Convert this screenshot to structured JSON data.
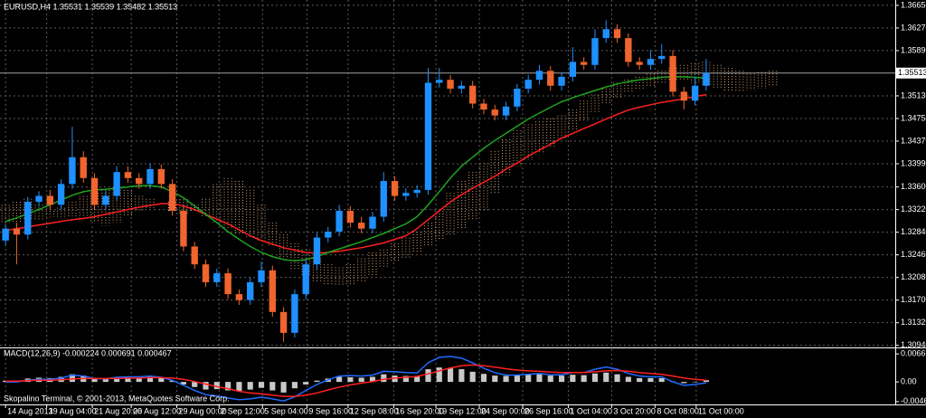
{
  "chart_data": {
    "type": "candlestick",
    "title": "EURUSD,H4  1.35531 1.35539 1.35482 1.35513",
    "footer": "Skopalino Terminal, © 2001-2013, MetaQuotes Software Corp.",
    "open": [
      1.327,
      1.329,
      1.328,
      1.3335,
      1.3345,
      1.333,
      1.3365,
      1.341,
      1.3375,
      1.333,
      1.3345,
      1.3385,
      1.3375,
      1.3365,
      1.339,
      1.3365,
      1.332,
      1.326,
      1.323,
      1.32,
      1.3215,
      1.318,
      1.317,
      1.32,
      1.322,
      1.315,
      1.3115,
      1.318,
      1.323,
      1.3275,
      1.3285,
      1.332,
      1.33,
      1.329,
      1.331,
      1.337,
      1.3345,
      1.335,
      1.3355,
      1.3535,
      1.354,
      1.3525,
      1.353,
      1.35,
      1.349,
      1.348,
      1.3495,
      1.3525,
      1.354,
      1.3555,
      1.353,
      1.3545,
      1.357,
      1.3565,
      1.361,
      1.3625,
      1.361,
      1.357,
      1.3565,
      1.3575,
      1.358,
      1.352,
      1.3505,
      1.353
    ],
    "high": [
      1.3298,
      1.33,
      1.3343,
      1.3353,
      1.3355,
      1.3373,
      1.3461,
      1.342,
      1.3383,
      1.3353,
      1.3395,
      1.3395,
      1.3383,
      1.34,
      1.3398,
      1.3373,
      1.3328,
      1.3268,
      1.3238,
      1.3223,
      1.3223,
      1.3188,
      1.3208,
      1.3235,
      1.3228,
      1.3158,
      1.3188,
      1.3238,
      1.3283,
      1.3293,
      1.333,
      1.3328,
      1.331,
      1.3318,
      1.3385,
      1.3378,
      1.3358,
      1.3363,
      1.356,
      1.356,
      1.3548,
      1.3538,
      1.3538,
      1.3508,
      1.3498,
      1.3503,
      1.3533,
      1.3548,
      1.3565,
      1.3563,
      1.3553,
      1.3595,
      1.3578,
      1.3625,
      1.364,
      1.3633,
      1.3618,
      1.3578,
      1.359,
      1.36,
      1.359,
      1.3528,
      1.3545,
      1.3575
    ],
    "low": [
      1.3262,
      1.323,
      1.3272,
      1.3327,
      1.3322,
      1.3322,
      1.3357,
      1.3367,
      1.3322,
      1.3322,
      1.3337,
      1.3367,
      1.3357,
      1.3357,
      1.3357,
      1.3312,
      1.3252,
      1.3222,
      1.3192,
      1.3192,
      1.3172,
      1.3162,
      1.3162,
      1.3192,
      1.3142,
      1.31,
      1.3107,
      1.3172,
      1.3222,
      1.3267,
      1.3277,
      1.3292,
      1.3282,
      1.3282,
      1.3302,
      1.3337,
      1.3337,
      1.3342,
      1.3347,
      1.3527,
      1.3517,
      1.3517,
      1.3492,
      1.3482,
      1.3472,
      1.3472,
      1.3487,
      1.3517,
      1.3532,
      1.3522,
      1.3522,
      1.3537,
      1.3557,
      1.3557,
      1.3602,
      1.3602,
      1.3562,
      1.3557,
      1.3557,
      1.3567,
      1.3512,
      1.349,
      1.3497,
      1.3522
    ],
    "close": [
      1.329,
      1.328,
      1.3335,
      1.3345,
      1.333,
      1.3365,
      1.341,
      1.3375,
      1.333,
      1.3345,
      1.3385,
      1.3375,
      1.3365,
      1.339,
      1.3365,
      1.332,
      1.326,
      1.323,
      1.32,
      1.3215,
      1.318,
      1.317,
      1.32,
      1.322,
      1.315,
      1.3115,
      1.318,
      1.323,
      1.3275,
      1.3285,
      1.332,
      1.33,
      1.329,
      1.331,
      1.337,
      1.3345,
      1.335,
      1.3355,
      1.3535,
      1.354,
      1.3525,
      1.353,
      1.35,
      1.349,
      1.348,
      1.3495,
      1.3525,
      1.354,
      1.3555,
      1.353,
      1.3545,
      1.357,
      1.3565,
      1.361,
      1.3625,
      1.361,
      1.357,
      1.3565,
      1.3575,
      1.358,
      1.352,
      1.3505,
      1.353,
      1.35513
    ],
    "bull_color": "#1e90ff",
    "bear_color": "#f0642d",
    "lines": [
      {
        "color": "#ff2020",
        "values": [
          1.3287,
          1.329,
          1.3293,
          1.3296,
          1.3299,
          1.3302,
          1.3305,
          1.3307,
          1.331,
          1.3314,
          1.3318,
          1.3322,
          1.3326,
          1.3329,
          1.3332,
          1.3332,
          1.3328,
          1.3322,
          1.3314,
          1.3306,
          1.3298,
          1.3288,
          1.3278,
          1.327,
          1.3264,
          1.3258,
          1.3254,
          1.325,
          1.3249,
          1.325,
          1.3252,
          1.3255,
          1.3258,
          1.3262,
          1.3266,
          1.3272,
          1.3278,
          1.329,
          1.3305,
          1.332,
          1.3335,
          1.3347,
          1.3358,
          1.3368,
          1.3378,
          1.339,
          1.34,
          1.3412,
          1.3422,
          1.3432,
          1.3442,
          1.345,
          1.3458,
          1.3466,
          1.3474,
          1.3482,
          1.3489,
          1.3494,
          1.3498,
          1.3502,
          1.3505,
          1.3508,
          1.3512,
          1.3515
        ]
      },
      {
        "color": "#1fa31f",
        "values": [
          1.3302,
          1.3308,
          1.3315,
          1.3322,
          1.333,
          1.3338,
          1.3346,
          1.3352,
          1.3355,
          1.3356,
          1.3358,
          1.336,
          1.3362,
          1.3362,
          1.336,
          1.3352,
          1.3342,
          1.3328,
          1.3314,
          1.33,
          1.3285,
          1.3272,
          1.326,
          1.325,
          1.3243,
          1.3238,
          1.3236,
          1.3238,
          1.3243,
          1.325,
          1.3256,
          1.3262,
          1.3268,
          1.3275,
          1.3282,
          1.329,
          1.3298,
          1.331,
          1.333,
          1.3352,
          1.3375,
          1.3395,
          1.341,
          1.3425,
          1.3438,
          1.345,
          1.3462,
          1.3474,
          1.3484,
          1.3494,
          1.3503,
          1.351,
          1.3516,
          1.3522,
          1.3528,
          1.3533,
          1.3537,
          1.354,
          1.3542,
          1.3544,
          1.3545,
          1.3545,
          1.3544,
          1.3543
        ]
      }
    ],
    "cloud": {
      "up_color": "#d9a070",
      "down_color": "#e0e0e0",
      "span_a": [
        1.333,
        1.3335,
        1.334,
        1.333,
        1.332,
        1.3325,
        1.3335,
        1.3345,
        1.335,
        1.3355,
        1.336,
        1.3355,
        1.3345,
        1.334,
        1.333,
        1.332,
        1.3315,
        1.332,
        1.334,
        1.3365,
        1.3375,
        1.337,
        1.3355,
        1.333,
        1.33,
        1.328,
        1.3265,
        1.3255,
        1.324,
        1.323,
        1.3225,
        1.323,
        1.324,
        1.325,
        1.3255,
        1.3265,
        1.3275,
        1.3285,
        1.33,
        1.332,
        1.335,
        1.337,
        1.3385,
        1.34,
        1.342,
        1.344,
        1.3455,
        1.3465,
        1.347,
        1.3475,
        1.348,
        1.349,
        1.3505,
        1.3515,
        1.3525,
        1.3535,
        1.354,
        1.3545,
        1.355,
        1.3555,
        1.356,
        1.3565,
        1.3568,
        1.357,
        1.3565,
        1.356,
        1.3555,
        1.355,
        1.3553,
        1.3555
      ],
      "span_b": [
        1.33,
        1.33,
        1.3305,
        1.3305,
        1.331,
        1.331,
        1.331,
        1.3305,
        1.33,
        1.3295,
        1.33,
        1.331,
        1.332,
        1.3325,
        1.333,
        1.3335,
        1.334,
        1.333,
        1.331,
        1.33,
        1.329,
        1.328,
        1.3275,
        1.327,
        1.326,
        1.324,
        1.322,
        1.321,
        1.32,
        1.3195,
        1.3195,
        1.3195,
        1.32,
        1.321,
        1.3225,
        1.3235,
        1.324,
        1.325,
        1.326,
        1.327,
        1.328,
        1.329,
        1.3305,
        1.332,
        1.335,
        1.338,
        1.3395,
        1.3405,
        1.3415,
        1.3425,
        1.344,
        1.3455,
        1.347,
        1.3485,
        1.35,
        1.351,
        1.352,
        1.3525,
        1.353,
        1.3535,
        1.3538,
        1.354,
        1.3535,
        1.353,
        1.3525,
        1.352,
        1.352,
        1.3522,
        1.3525,
        1.3528
      ]
    },
    "current_price": 1.35513,
    "xlim": [
      -0.5,
      80
    ],
    "ylim": [
      1.3092,
      1.3674
    ],
    "grid": true,
    "yticks": [
      {
        "value": 1.3665,
        "label": "1.36650"
      },
      {
        "value": 1.3627,
        "label": "1.36270"
      },
      {
        "value": 1.3589,
        "label": "1.35890"
      },
      {
        "value": 1.3513,
        "label": "1.35130"
      },
      {
        "value": 1.3475,
        "label": "1.34750"
      },
      {
        "value": 1.3437,
        "label": "1.34370"
      },
      {
        "value": 1.3399,
        "label": "1.33990"
      },
      {
        "value": 1.336,
        "label": "1.33600"
      },
      {
        "value": 1.3322,
        "label": "1.33220"
      },
      {
        "value": 1.3284,
        "label": "1.32840"
      },
      {
        "value": 1.3246,
        "label": "1.32460"
      },
      {
        "value": 1.3208,
        "label": "1.32080"
      },
      {
        "value": 1.317,
        "label": "1.31700"
      },
      {
        "value": 1.3132,
        "label": "1.31320"
      },
      {
        "value": 1.3094,
        "label": "1.30940"
      }
    ],
    "xticks": [
      {
        "value": 0,
        "label": "14 Aug 2013"
      },
      {
        "value": 3.7,
        "label": "19 Aug 04:00"
      },
      {
        "value": 7.8,
        "label": "21 Aug 20:00"
      },
      {
        "value": 11.3,
        "label": "26 Aug 12:00"
      },
      {
        "value": 15.4,
        "label": "29 Aug 00:00"
      },
      {
        "value": 19.2,
        "label": "2 Sep 12:00"
      },
      {
        "value": 23.1,
        "label": "5 Sep 04:00"
      },
      {
        "value": 27.1,
        "label": "9 Sep 16:00"
      },
      {
        "value": 30.8,
        "label": "12 Sep 08:00"
      },
      {
        "value": 34.9,
        "label": "16 Sep 20:00"
      },
      {
        "value": 38.7,
        "label": "19 Sep 12:00"
      },
      {
        "value": 42.6,
        "label": "24 Sep 00:00"
      },
      {
        "value": 46.5,
        "label": "26 Sep 16:00"
      },
      {
        "value": 50.6,
        "label": "1 Oct 04:00"
      },
      {
        "value": 54.5,
        "label": "3 Oct 20:00"
      },
      {
        "value": 58.4,
        "label": "8 Oct 08:00"
      },
      {
        "value": 62.1,
        "label": "11 Oct 00:00"
      }
    ],
    "macd": {
      "label": "MACD(12,26,9) -0.000224 0.000691 0.000467",
      "ylim": [
        -0.0053,
        0.0077
      ],
      "yticks": [
        0.0066,
        {
          "value": 0,
          "label": "0.00"
        },
        -0.00463
      ],
      "hist_color": "#c8c8c8",
      "main_color": "#1e6cff",
      "signal_color": "#ff2020",
      "histogram": [
        0.0003,
        0.0002,
        0.0008,
        0.001,
        0.0009,
        0.0012,
        0.0018,
        0.0015,
        0.0008,
        0.0007,
        0.001,
        0.0011,
        0.001,
        0.0012,
        0.0009,
        0.0003,
        -0.0006,
        -0.0012,
        -0.0018,
        -0.0017,
        -0.002,
        -0.0021,
        -0.0018,
        -0.0014,
        -0.002,
        -0.0025,
        -0.0015,
        -0.0006,
        0.0003,
        0.0008,
        0.0012,
        0.0011,
        0.001,
        0.0012,
        0.0018,
        0.0015,
        0.0014,
        0.0013,
        0.003,
        0.0034,
        0.0032,
        0.003,
        0.0024,
        0.0019,
        0.0015,
        0.0014,
        0.0016,
        0.0017,
        0.0018,
        0.0015,
        0.0015,
        0.0017,
        0.0016,
        0.002,
        0.0022,
        0.0018,
        0.0012,
        0.0009,
        0.0009,
        0.0009,
        0.0001,
        -0.0003,
        0.0,
        0.0004
      ],
      "main": [
        0.0,
        0.0,
        0.0004,
        0.0006,
        0.0006,
        0.0009,
        0.0016,
        0.0014,
        0.0008,
        0.0007,
        0.0011,
        0.0012,
        0.0012,
        0.0014,
        0.0011,
        0.0004,
        -0.0008,
        -0.002,
        -0.003,
        -0.0033,
        -0.0038,
        -0.0042,
        -0.004,
        -0.0036,
        -0.004,
        -0.0045,
        -0.0035,
        -0.002,
        -0.0006,
        0.0005,
        0.0014,
        0.0015,
        0.0014,
        0.0016,
        0.0025,
        0.0024,
        0.0022,
        0.0021,
        0.0045,
        0.0058,
        0.006,
        0.0056,
        0.0045,
        0.0032,
        0.0022,
        0.0016,
        0.0016,
        0.0018,
        0.002,
        0.0017,
        0.0017,
        0.0022,
        0.0022,
        0.003,
        0.0035,
        0.003,
        0.002,
        0.0014,
        0.0012,
        0.0012,
        0.0,
        -0.0008,
        -0.0006,
        -0.0002
      ],
      "signal": [
        0.0002,
        0.0002,
        0.0003,
        0.0004,
        0.0004,
        0.0005,
        0.0007,
        0.0008,
        0.0008,
        0.0008,
        0.0008,
        0.0009,
        0.0009,
        0.001,
        0.001,
        0.0009,
        0.0006,
        0.0001,
        -0.0005,
        -0.0011,
        -0.0016,
        -0.0022,
        -0.0026,
        -0.0028,
        -0.0031,
        -0.0034,
        -0.0034,
        -0.0031,
        -0.0026,
        -0.0019,
        -0.0012,
        -0.0007,
        -0.0003,
        0.0001,
        0.0006,
        0.0009,
        0.0011,
        0.0013,
        0.0019,
        0.0026,
        0.0033,
        0.0038,
        0.004,
        0.0038,
        0.0035,
        0.0031,
        0.0028,
        0.0026,
        0.0025,
        0.0023,
        0.0022,
        0.0022,
        0.0022,
        0.0024,
        0.0026,
        0.0027,
        0.0025,
        0.0022,
        0.002,
        0.0018,
        0.0014,
        0.0009,
        0.0006,
        0.0004
      ]
    }
  }
}
